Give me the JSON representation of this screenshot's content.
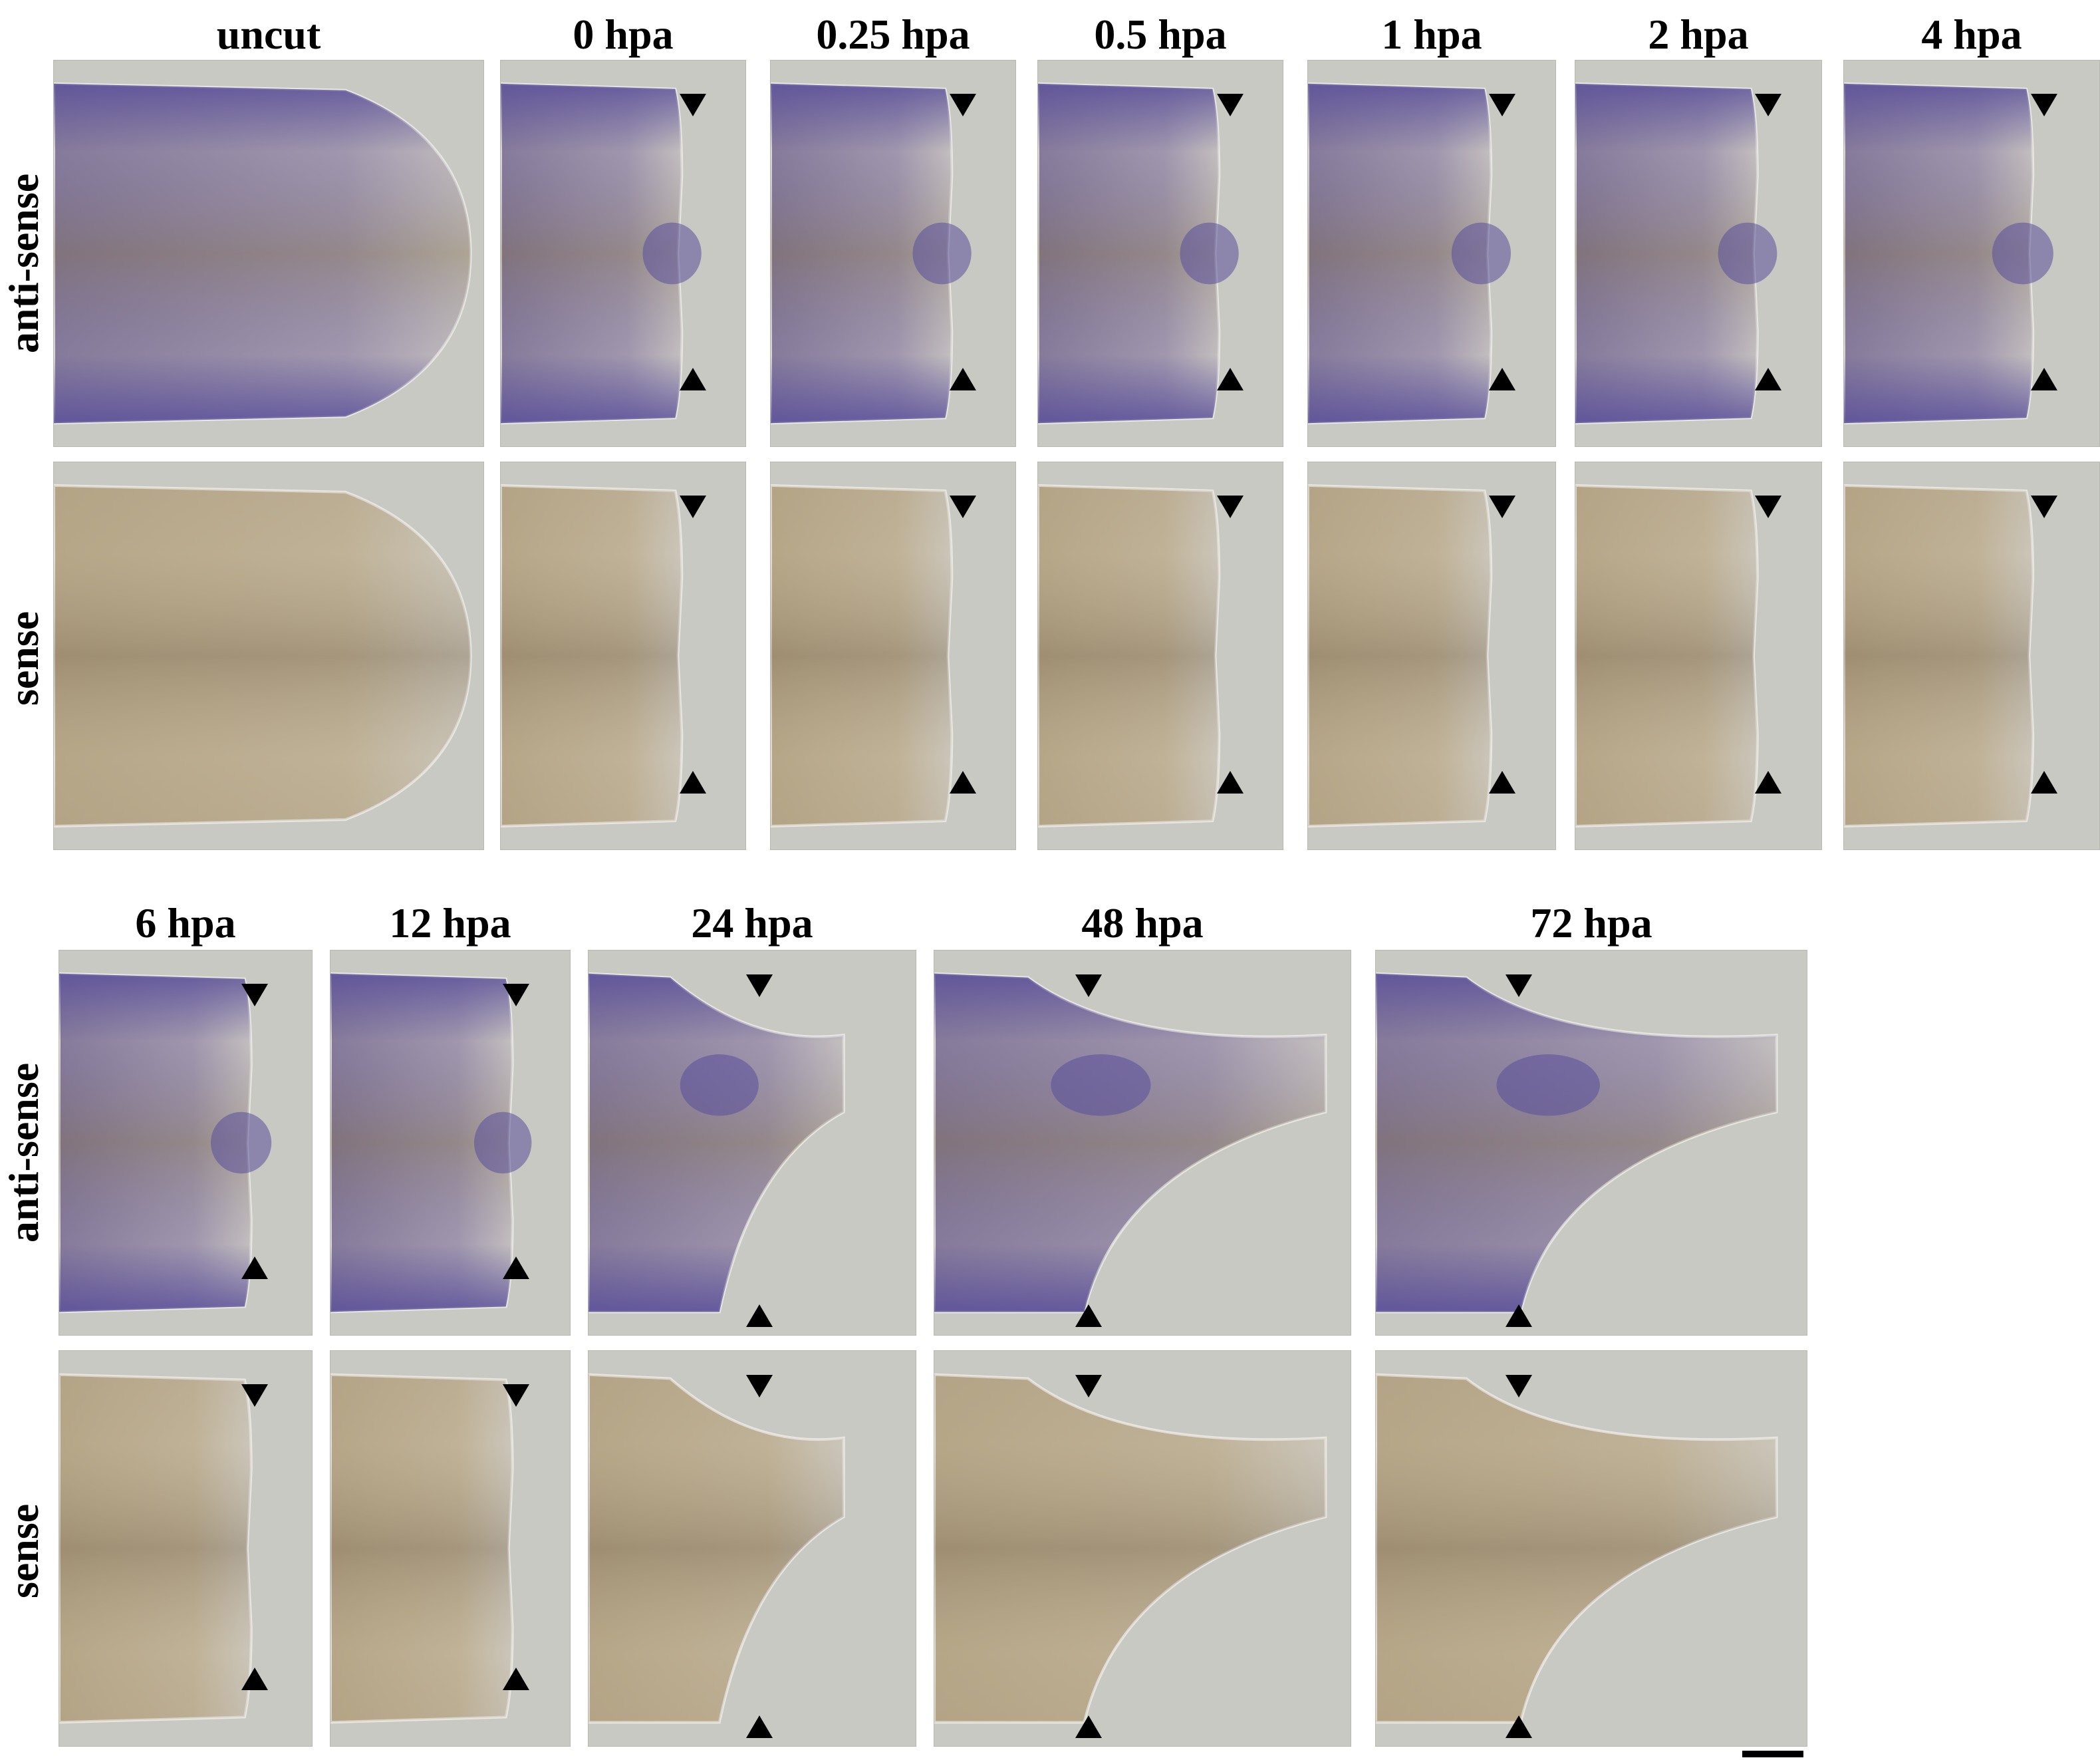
{
  "top_block": {
    "columns": [
      "uncut",
      "0 hpa",
      "0.25 hpa",
      "0.5 hpa",
      "1 hpa",
      "2 hpa",
      "4 hpa"
    ],
    "rows": [
      "anti-sense",
      "sense"
    ]
  },
  "bottom_block": {
    "columns": [
      "6 hpa",
      "12 hpa",
      "24 hpa",
      "48 hpa",
      "72 hpa"
    ],
    "rows": [
      "anti-sense",
      "sense"
    ]
  },
  "colors": {
    "background_gray": "#c9c9c3",
    "antisense_stain": "#5a4f9a",
    "tissue_tan": "#a8977a",
    "marker": "#000000"
  },
  "markers": {
    "arrowhead_down": "arrowhead-down-icon",
    "arrowhead_up": "arrowhead-up-icon"
  }
}
